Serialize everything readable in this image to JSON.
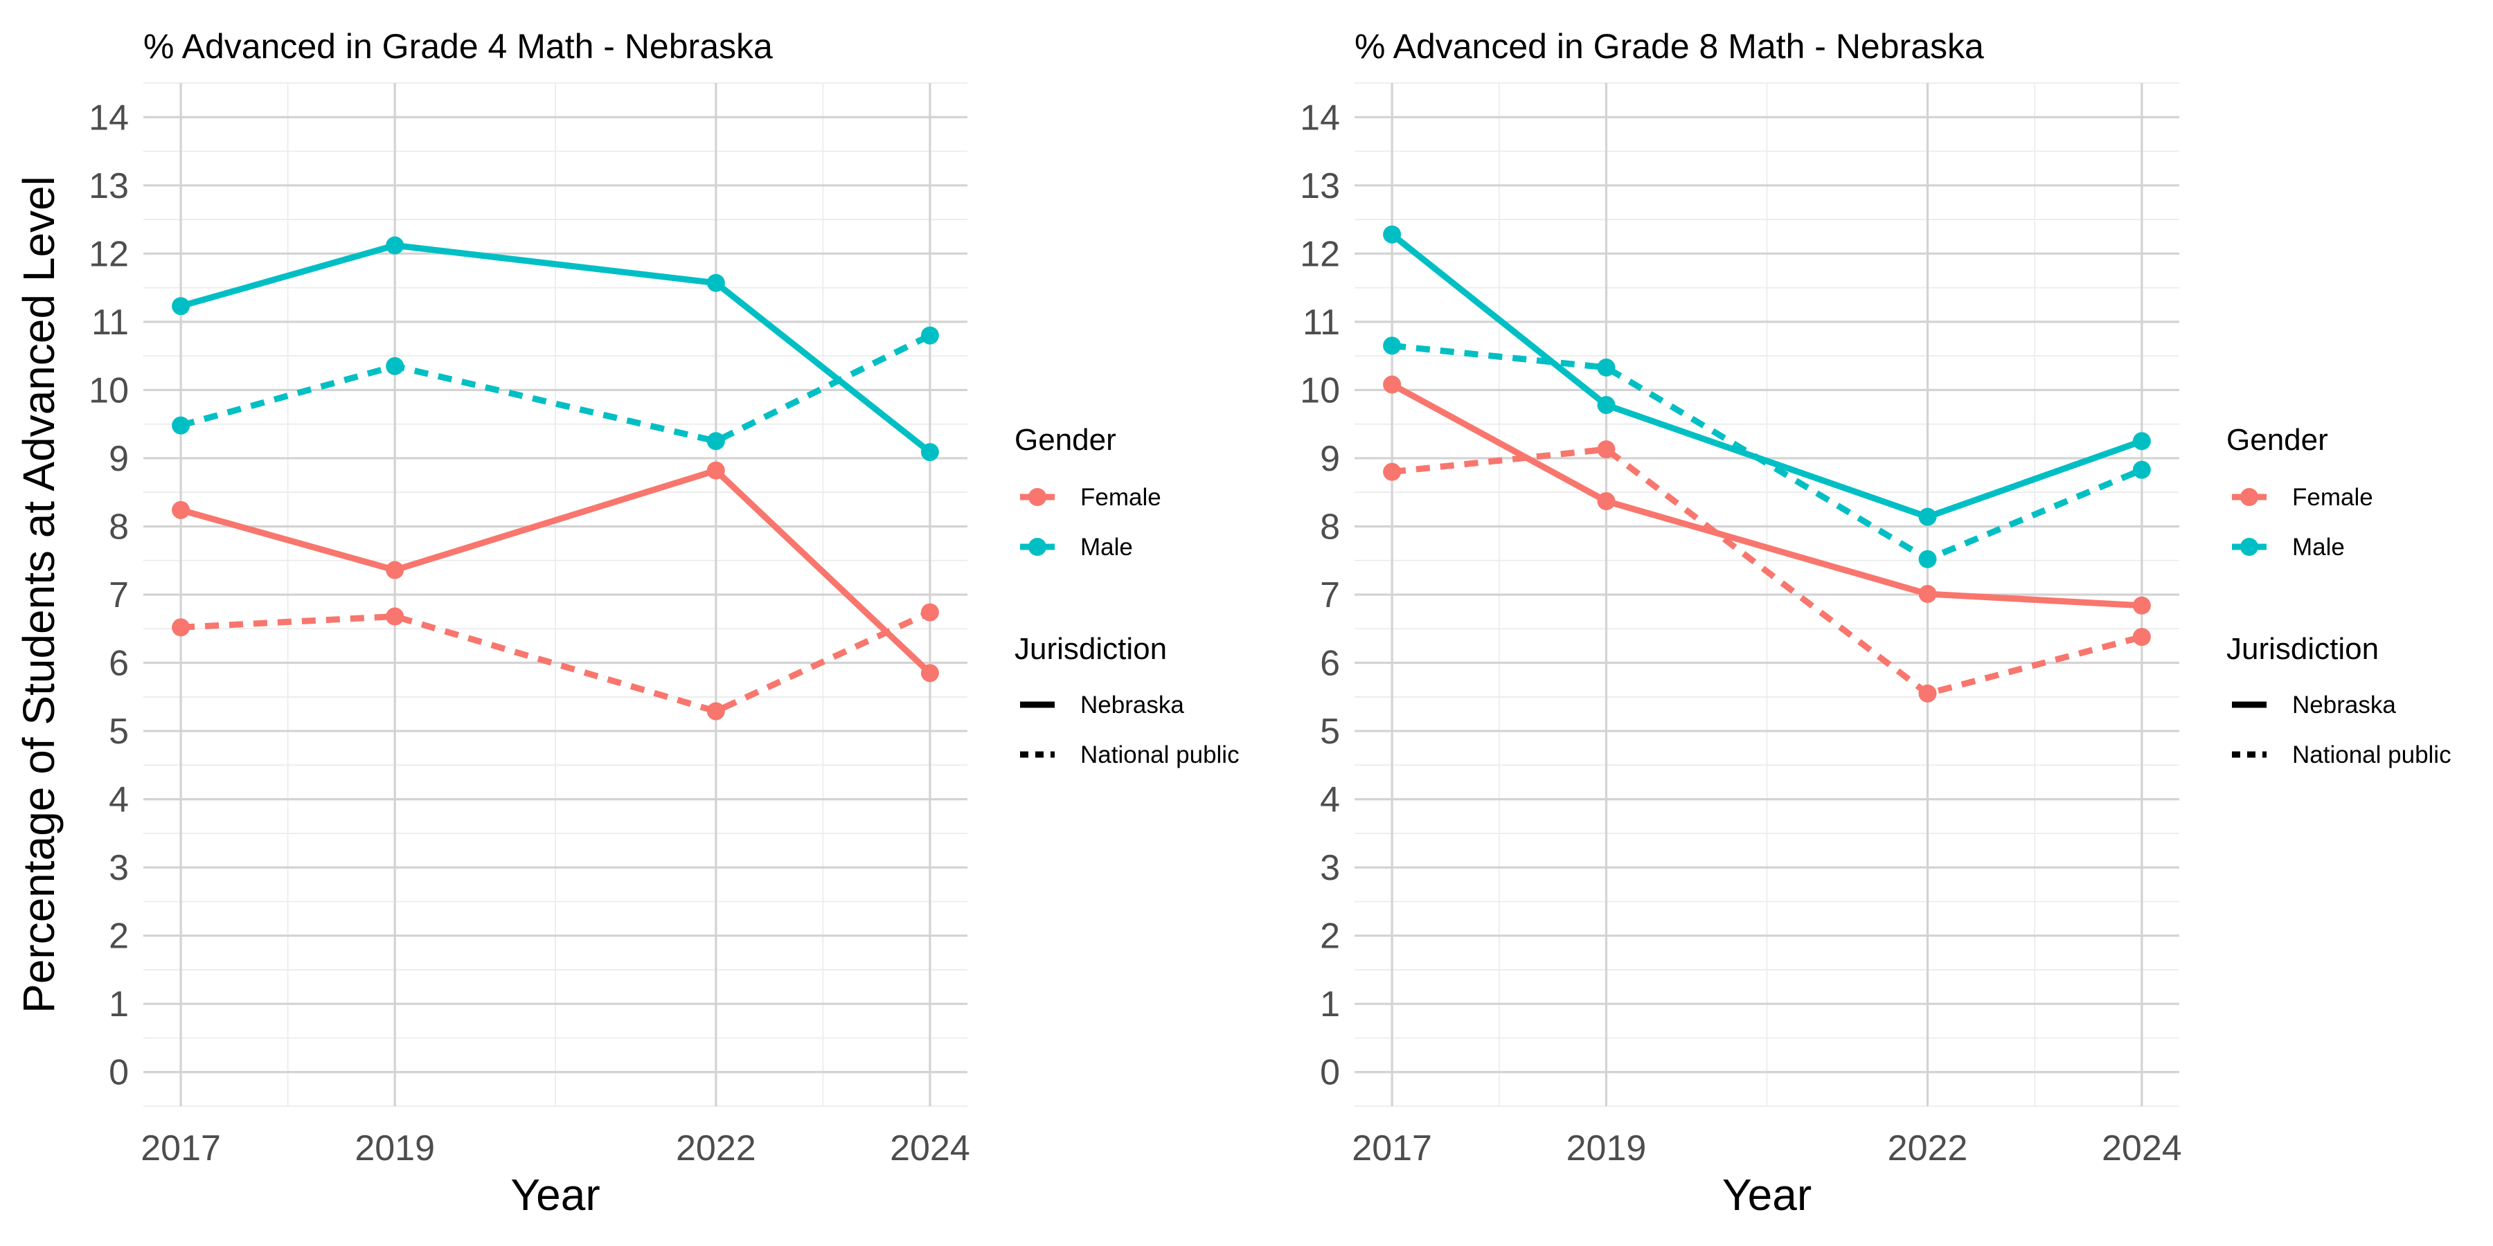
{
  "colors": {
    "Female": "#F8766D",
    "Male": "#00BFC4",
    "background": "#FFFFFF"
  },
  "shared": {
    "ylabel": "Percentage of Students at Advanced Level",
    "legend": {
      "gender_title": "Gender",
      "gender_items": [
        "Female",
        "Male"
      ],
      "jurisdiction_title": "Jurisdiction",
      "jurisdiction_items": [
        {
          "label": "Nebraska",
          "linetype": "solid"
        },
        {
          "label": "National public",
          "linetype": "dashed"
        }
      ],
      "placement": "right"
    }
  },
  "chart_data": [
    {
      "type": "line",
      "title": "% Advanced in Grade 4 Math - Nebraska",
      "xlabel": "Year",
      "ylabel": "Percentage of Students at Advanced Level",
      "x": [
        2017,
        2019,
        2022,
        2024
      ],
      "x_ticks": [
        "2017",
        "2019",
        "2022",
        "2024"
      ],
      "xlim": [
        2016.65,
        2024.35
      ],
      "ylim": [
        -0.5,
        14.5
      ],
      "y_ticks": [
        0,
        1,
        2,
        3,
        4,
        5,
        6,
        7,
        8,
        9,
        10,
        11,
        12,
        13,
        14
      ],
      "grid": true,
      "series": [
        {
          "gender": "Male",
          "jurisdiction": "Nebraska",
          "linetype": "solid",
          "values": [
            11.23,
            12.12,
            11.57,
            9.09
          ]
        },
        {
          "gender": "Male",
          "jurisdiction": "National public",
          "linetype": "dashed",
          "values": [
            9.48,
            10.35,
            9.25,
            10.8
          ]
        },
        {
          "gender": "Female",
          "jurisdiction": "Nebraska",
          "linetype": "solid",
          "values": [
            8.24,
            7.36,
            8.82,
            5.85
          ]
        },
        {
          "gender": "Female",
          "jurisdiction": "National public",
          "linetype": "dashed",
          "values": [
            6.52,
            6.68,
            5.29,
            6.74
          ]
        }
      ]
    },
    {
      "type": "line",
      "title": "% Advanced in Grade 8 Math - Nebraska",
      "xlabel": "Year",
      "ylabel": "",
      "x": [
        2017,
        2019,
        2022,
        2024
      ],
      "x_ticks": [
        "2017",
        "2019",
        "2022",
        "2024"
      ],
      "xlim": [
        2016.65,
        2024.35
      ],
      "ylim": [
        -0.5,
        14.5
      ],
      "y_ticks": [
        0,
        1,
        2,
        3,
        4,
        5,
        6,
        7,
        8,
        9,
        10,
        11,
        12,
        13,
        14
      ],
      "grid": true,
      "series": [
        {
          "gender": "Male",
          "jurisdiction": "Nebraska",
          "linetype": "solid",
          "values": [
            12.28,
            9.78,
            8.14,
            9.25
          ]
        },
        {
          "gender": "Male",
          "jurisdiction": "National public",
          "linetype": "dashed",
          "values": [
            10.65,
            10.33,
            7.52,
            8.83
          ]
        },
        {
          "gender": "Female",
          "jurisdiction": "Nebraska",
          "linetype": "solid",
          "values": [
            10.08,
            8.37,
            7.01,
            6.84
          ]
        },
        {
          "gender": "Female",
          "jurisdiction": "National public",
          "linetype": "dashed",
          "values": [
            8.8,
            9.13,
            5.55,
            6.38
          ]
        }
      ]
    }
  ]
}
